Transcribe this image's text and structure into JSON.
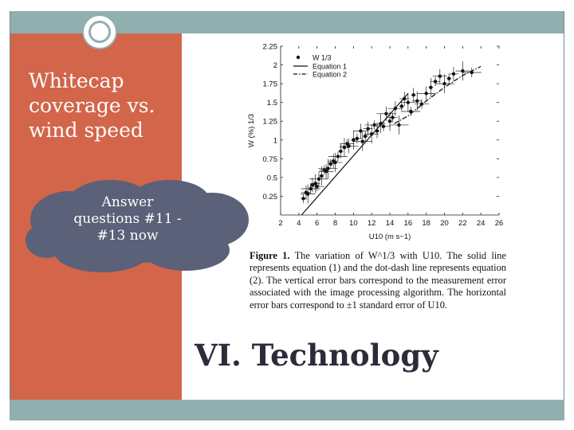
{
  "slide": {
    "title": "Whitecap\ncoverage vs.\nwind speed",
    "callout": "Answer\nquestions #11 -\n#13 now",
    "section_heading": "VI. Technology",
    "colors": {
      "accent_bar": "#8fb0ae",
      "side_panel": "#d2654a",
      "cloud": "#5a6178"
    }
  },
  "figure": {
    "label": "Figure 1.",
    "caption": "The variation of W^1/3 with U10. The solid line represents equation (1) and the dot-dash line represents equation (2). The vertical error bars correspond to the measurement error associated with the image processing algorithm. The horizontal error bars correspond to ±1 standard error of U10."
  },
  "chart_data": {
    "type": "scatter",
    "xlabel": "U10 (m s−1)",
    "ylabel": "W (%) 1/3",
    "xlim": [
      2,
      26
    ],
    "ylim": [
      0,
      2.25
    ],
    "xticks": [
      2,
      4,
      6,
      8,
      10,
      12,
      14,
      16,
      18,
      20,
      22,
      24,
      26
    ],
    "yticks": [
      0.25,
      0.5,
      0.75,
      1,
      1.25,
      1.5,
      1.75,
      2,
      2.25
    ],
    "ytick_labels": [
      "0.25",
      "0.5",
      "0.75",
      "1",
      "1.25",
      "1.5",
      "1.75",
      "2",
      "2.25"
    ],
    "legend": {
      "position": "top-left",
      "entries": [
        "W 1/3",
        "Equation 1",
        "Equation 2"
      ]
    },
    "points": {
      "x": [
        4.5,
        4.8,
        5.0,
        5.3,
        5.5,
        5.8,
        6.0,
        6.2,
        6.5,
        6.8,
        7.0,
        7.2,
        7.5,
        7.8,
        8.0,
        8.3,
        8.6,
        9.0,
        9.3,
        9.5,
        10.0,
        10.4,
        10.8,
        11.0,
        11.3,
        11.6,
        12.0,
        12.3,
        12.6,
        13.0,
        13.3,
        13.6,
        14.0,
        14.3,
        14.6,
        15.0,
        15.3,
        15.6,
        16.0,
        16.3,
        16.6,
        17.0,
        17.5,
        18.0,
        18.5,
        19.0,
        19.5,
        20.0,
        20.5,
        21.0,
        22.0,
        23.0
      ],
      "y": [
        0.22,
        0.3,
        0.28,
        0.35,
        0.4,
        0.42,
        0.38,
        0.48,
        0.52,
        0.6,
        0.58,
        0.62,
        0.68,
        0.72,
        0.7,
        0.78,
        0.85,
        0.9,
        0.95,
        0.92,
        1.0,
        1.02,
        1.12,
        0.98,
        1.05,
        1.15,
        1.08,
        1.2,
        1.12,
        1.22,
        1.18,
        1.35,
        1.25,
        1.3,
        1.42,
        1.2,
        1.45,
        1.55,
        1.5,
        1.38,
        1.6,
        1.52,
        1.48,
        1.62,
        1.7,
        1.78,
        1.85,
        1.75,
        1.82,
        1.88,
        1.92,
        1.9
      ]
    },
    "equation1": {
      "x": [
        4.3,
        16.0
      ],
      "y": [
        0.0,
        1.62
      ]
    },
    "equation2": {
      "x": [
        14.5,
        16.0,
        18.0,
        20.0,
        22.0,
        24.0
      ],
      "y": [
        1.22,
        1.32,
        1.52,
        1.7,
        1.86,
        1.98
      ]
    }
  }
}
